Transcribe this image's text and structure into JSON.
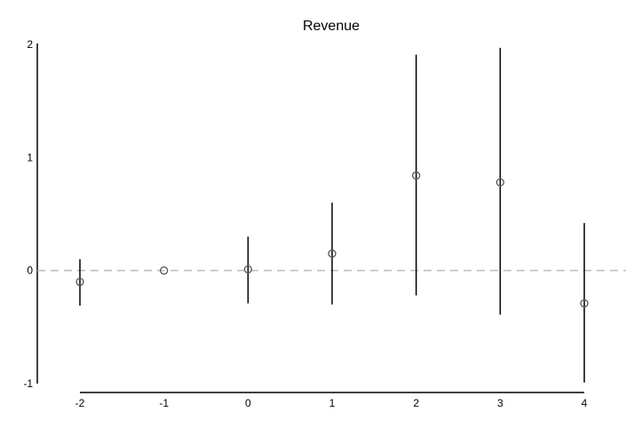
{
  "chart_data": {
    "type": "scatter",
    "title": "Revenue",
    "xlabel": "",
    "ylabel": "",
    "x": [
      -2,
      -1,
      0,
      1,
      2,
      3,
      4
    ],
    "y": [
      -0.1,
      0.0,
      0.01,
      0.15,
      0.84,
      0.78,
      -0.29
    ],
    "err_low": [
      -0.31,
      0.0,
      -0.29,
      -0.3,
      -0.22,
      -0.39,
      -0.99
    ],
    "err_high": [
      0.1,
      0.0,
      0.3,
      0.6,
      1.91,
      1.97,
      0.42
    ],
    "xticks": [
      "-2",
      "-1",
      "0",
      "1",
      "2",
      "3",
      "4"
    ],
    "yticks": [
      "-1",
      "0",
      "1",
      "2"
    ],
    "xlim": [
      -2,
      4
    ],
    "ylim": [
      -1,
      2
    ],
    "reference_line": 0,
    "grid": false,
    "colors": {
      "errorbar": "#000000",
      "marker": "#555555",
      "reference": "#bbbbbb",
      "axis": "#000000"
    }
  }
}
